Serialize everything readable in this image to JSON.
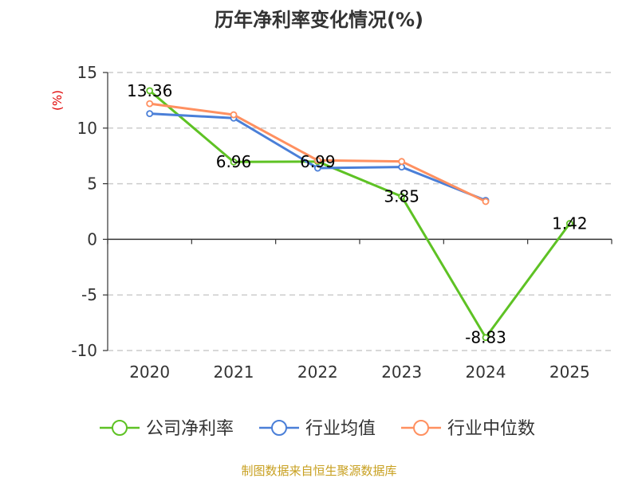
{
  "source": "制图数据来自恒生聚源数据库",
  "chart_data": {
    "type": "line",
    "title": "历年净利率变化情况(%)",
    "y_unit": "(%)",
    "categories": [
      "2020",
      "2021",
      "2022",
      "2023",
      "2024",
      "2025"
    ],
    "ylim": [
      -10,
      15
    ],
    "yticks": [
      15,
      10,
      5,
      0,
      -5,
      -10
    ],
    "grid": true,
    "legend_position": "bottom",
    "series": [
      {
        "name": "公司净利率",
        "color": "#5ec224",
        "values": [
          13.36,
          6.96,
          6.99,
          3.85,
          -8.83,
          1.42
        ],
        "labels": [
          "13.36",
          "6.96",
          "6.99",
          "3.85",
          "-8.83",
          "1.42"
        ]
      },
      {
        "name": "行业均值",
        "color": "#4a7fd8",
        "values": [
          11.3,
          10.9,
          6.4,
          6.5,
          3.5,
          null
        ]
      },
      {
        "name": "行业中位数",
        "color": "#ff9060",
        "values": [
          12.2,
          11.2,
          7.1,
          7.0,
          3.4,
          null
        ]
      }
    ]
  }
}
